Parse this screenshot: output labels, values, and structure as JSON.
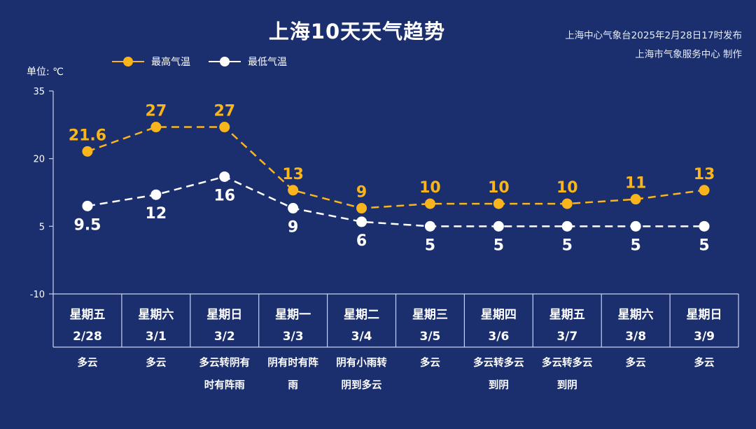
{
  "header": {
    "title": "上海10天天气趋势",
    "publisher_line1": "上海中心气象台2025年2月28日17时发布",
    "publisher_line2": "上海市气象服务中心 制作"
  },
  "legend": {
    "high_label": "最高气温",
    "low_label": "最低气温"
  },
  "unit_label": "单位: ℃",
  "colors": {
    "background": "#1b2f6e",
    "high": "#f9b51b",
    "low": "#ffffff",
    "grid": "#c9d3ee"
  },
  "chart_data": {
    "type": "line",
    "categories": [
      "2/28",
      "3/1",
      "3/2",
      "3/3",
      "3/4",
      "3/5",
      "3/6",
      "3/7",
      "3/8",
      "3/9"
    ],
    "weekdays": [
      "星期五",
      "星期六",
      "星期日",
      "星期一",
      "星期二",
      "星期三",
      "星期四",
      "星期五",
      "星期六",
      "星期日"
    ],
    "weather": [
      [
        "多云"
      ],
      [
        "多云"
      ],
      [
        "多云转阴有",
        "时有阵雨"
      ],
      [
        "阴有时有阵",
        "雨"
      ],
      [
        "阴有小雨转",
        "阴到多云"
      ],
      [
        "多云"
      ],
      [
        "多云转多云",
        "到阴"
      ],
      [
        "多云转多云",
        "到阴"
      ],
      [
        "多云"
      ],
      [
        "多云"
      ]
    ],
    "series": [
      {
        "name": "最高气温",
        "values": [
          21.6,
          27,
          27,
          13,
          9,
          10,
          10,
          10,
          11,
          13
        ],
        "labels": [
          "21.6",
          "27",
          "27",
          "13",
          "9",
          "10",
          "10",
          "10",
          "11",
          "13"
        ]
      },
      {
        "name": "最低气温",
        "values": [
          9.5,
          12,
          16,
          9,
          6,
          5,
          5,
          5,
          5,
          5
        ],
        "labels": [
          "9.5",
          "12",
          "16",
          "9",
          "6",
          "5",
          "5",
          "5",
          "5",
          "5"
        ]
      }
    ],
    "yticks": [
      "35",
      "20",
      "5",
      "-10"
    ],
    "ylim": [
      -10,
      35
    ],
    "ylabel": "单位: ℃",
    "grid": false,
    "legend_position": "top-left"
  }
}
